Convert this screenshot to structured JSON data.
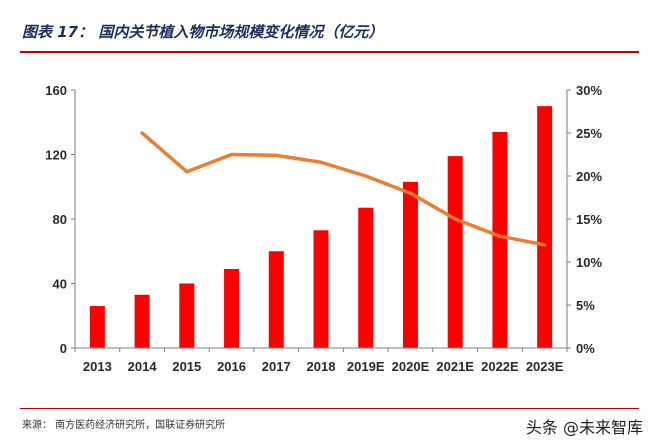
{
  "title": "图表 17：  国内关节植入物市场规模变化情况（亿元）",
  "source": "来源：  南方医药经济研究所，国联证券研究所",
  "watermark": "头条 @未来智库",
  "colors": {
    "bar": "#ff0000",
    "line": "#ed7d31",
    "title": "#1f2d5c",
    "rule": "#c00000"
  },
  "chart_data": {
    "type": "bar",
    "categories": [
      "2013",
      "2014",
      "2015",
      "2016",
      "2017",
      "2018",
      "2019E",
      "2020E",
      "2021E",
      "2022E",
      "2023E"
    ],
    "series": [
      {
        "values": [
          26,
          33,
          40,
          49,
          60,
          73,
          87,
          103,
          119,
          134,
          150
        ],
        "type": "bar",
        "axis": "left"
      },
      {
        "values": [
          null,
          25,
          20.5,
          22.5,
          22.4,
          21.6,
          20,
          18,
          15,
          13,
          12
        ],
        "type": "line",
        "axis": "right"
      }
    ],
    "left_axis": {
      "ylim": [
        0,
        160
      ],
      "ticks": [
        "0",
        "40",
        "80",
        "120",
        "160"
      ]
    },
    "right_axis": {
      "ylim": [
        0,
        30
      ],
      "ticks": [
        "0%",
        "5%",
        "10%",
        "15%",
        "20%",
        "25%",
        "30%"
      ]
    },
    "grid": false,
    "legend": "none"
  }
}
